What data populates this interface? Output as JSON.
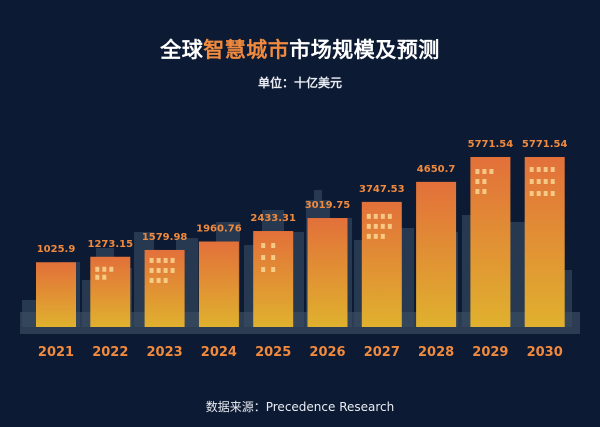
{
  "title": {
    "part1": "全球",
    "part2": "智慧城市",
    "part3": "市场规模及预测"
  },
  "unit_label": "单位：十亿美元",
  "source_label": "数据来源：Precedence Research",
  "colors": {
    "background": "#0c1a33",
    "title_highlight": "#f08a3e",
    "value_label": "#f08a3e",
    "bar_top_orange": "#e2703a",
    "bar_bottom_yellow": "#e0b12e",
    "city_silhouette": "#2c3f56"
  },
  "chart_data": {
    "type": "bar",
    "title": "全球智慧城市市场规模及预测",
    "ylabel": "单位：十亿美元",
    "xlabel": "",
    "categories": [
      "2021",
      "2022",
      "2023",
      "2024",
      "2025",
      "2026",
      "2027",
      "2028",
      "2029",
      "2030"
    ],
    "values": [
      1025.9,
      1273.15,
      1579.98,
      1960.76,
      2433.31,
      3019.75,
      3747.53,
      4650.7,
      5771.54,
      5771.54
    ],
    "value_labels": [
      "1025.9",
      "1273.15",
      "1579.98",
      "1960.76",
      "2433.31",
      "3019.75",
      "3747.53",
      "4650.7",
      "5771.54",
      "5771.54"
    ],
    "grid": false,
    "legend": "none"
  }
}
